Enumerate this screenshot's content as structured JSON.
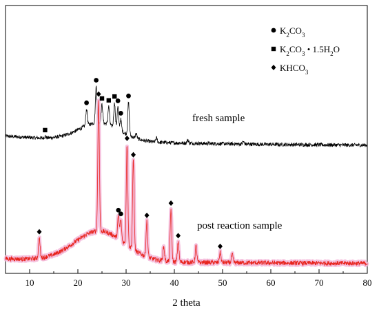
{
  "chart_data": {
    "type": "line",
    "title": "",
    "xlabel": "2 theta",
    "ylabel": "",
    "xlim": [
      5,
      80
    ],
    "xticks": [
      10,
      20,
      30,
      40,
      50,
      60,
      70,
      80
    ],
    "grid": false,
    "legend": {
      "placement": "top-right",
      "entries": [
        {
          "marker": "circle",
          "label_parts": [
            "K",
            "2",
            "CO",
            "3"
          ]
        },
        {
          "marker": "square",
          "label_parts": [
            "K",
            "2",
            "CO",
            "3",
            " • 1.5H",
            "2",
            "O"
          ]
        },
        {
          "marker": "diamond",
          "label_parts": [
            "KHCO",
            "3"
          ]
        }
      ]
    },
    "series": [
      {
        "name": "fresh sample",
        "color": "#000000",
        "background_level": 0.12,
        "hump": {
          "center": 24.5,
          "width": 4.2,
          "height": 0.22
        },
        "peaks": [
          {
            "x": 13.2,
            "h": 0.02
          },
          {
            "x": 21.8,
            "h": 0.2
          },
          {
            "x": 23.8,
            "h": 0.44
          },
          {
            "x": 25.0,
            "h": 0.22
          },
          {
            "x": 26.4,
            "h": 0.22
          },
          {
            "x": 27.6,
            "h": 0.3
          },
          {
            "x": 28.3,
            "h": 0.27
          },
          {
            "x": 28.9,
            "h": 0.14
          },
          {
            "x": 30.5,
            "h": 0.4
          },
          {
            "x": 32.1,
            "h": 0.06
          },
          {
            "x": 36.3,
            "h": 0.05
          },
          {
            "x": 42.8,
            "h": 0.04
          },
          {
            "x": 54.3,
            "h": 0.03
          }
        ],
        "annotations": [
          {
            "x": 13.2,
            "marker": "square"
          },
          {
            "x": 21.8,
            "marker": "circle"
          },
          {
            "x": 23.8,
            "marker": "circle"
          },
          {
            "x": 25.0,
            "marker": "square"
          },
          {
            "x": 26.4,
            "marker": "square"
          },
          {
            "x": 27.6,
            "marker": "square"
          },
          {
            "x": 28.3,
            "marker": "circle"
          },
          {
            "x": 28.9,
            "marker": "circle"
          },
          {
            "x": 30.5,
            "marker": "circle"
          }
        ]
      },
      {
        "name": "post reaction sample",
        "color": "#e8231c",
        "background_level": 0.05,
        "hump": {
          "center": 24.5,
          "width": 5.2,
          "height": 0.3
        },
        "peaks": [
          {
            "x": 12.0,
            "h": 0.2
          },
          {
            "x": 24.3,
            "h": 1.3
          },
          {
            "x": 28.4,
            "h": 0.22
          },
          {
            "x": 28.9,
            "h": 0.2
          },
          {
            "x": 30.2,
            "h": 1.0
          },
          {
            "x": 31.5,
            "h": 0.88
          },
          {
            "x": 34.3,
            "h": 0.35
          },
          {
            "x": 37.8,
            "h": 0.14
          },
          {
            "x": 39.3,
            "h": 0.52
          },
          {
            "x": 40.8,
            "h": 0.2
          },
          {
            "x": 44.5,
            "h": 0.16
          },
          {
            "x": 49.5,
            "h": 0.1
          },
          {
            "x": 52.0,
            "h": 0.08
          }
        ],
        "annotations": [
          {
            "x": 12.0,
            "marker": "diamond"
          },
          {
            "x": 24.3,
            "marker": "diamond"
          },
          {
            "x": 28.4,
            "marker": "circle"
          },
          {
            "x": 28.9,
            "marker": "circle"
          },
          {
            "x": 30.2,
            "marker": "diamond"
          },
          {
            "x": 31.5,
            "marker": "diamond"
          },
          {
            "x": 34.3,
            "marker": "diamond"
          },
          {
            "x": 39.3,
            "marker": "diamond"
          },
          {
            "x": 40.8,
            "marker": "diamond"
          },
          {
            "x": 49.5,
            "marker": "diamond"
          }
        ]
      }
    ]
  }
}
